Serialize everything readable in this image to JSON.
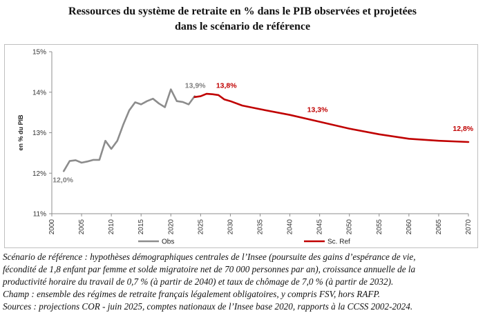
{
  "title_line1": "Ressources du système de retraite en % dans le PIB observées et projetées",
  "title_line2": "dans le scénario de référence",
  "notes": [
    "Scénario de référence : hypothèses démographiques centrales de l’Insee (poursuite des gains d’espérance de vie,",
    "fécondité de 1,8 enfant par femme et solde migratoire net de 70 000 personnes par an), croissance annuelle de la",
    "productivité horaire du travail de 0,7 % (à partir de 2040) et taux de chômage de 7,0 % (à partir de 2032).",
    "Champ : ensemble des régimes de retraite français légalement obligatoires, y compris FSV, hors RAFP.",
    "Sources : projections COR - juin 2025, comptes nationaux de l’Insee base 2020, rapports à la CCSS 2002-2024."
  ],
  "chart_data": {
    "type": "line",
    "ylabel": "en % du PIB",
    "xlabel": "",
    "xlim": [
      2000,
      2070
    ],
    "ylim": [
      11,
      15
    ],
    "x_ticks": [
      "2000",
      "2005",
      "2010",
      "2015",
      "2020",
      "2025",
      "2030",
      "2035",
      "2040",
      "2045",
      "2050",
      "2055",
      "2060",
      "2065",
      "2070"
    ],
    "y_ticks": [
      "11%",
      "12%",
      "13%",
      "14%",
      "15%"
    ],
    "y_tick_values": [
      11,
      12,
      13,
      14,
      15
    ],
    "grid": false,
    "legend_position": "bottom",
    "series": [
      {
        "name": "Obs",
        "color": "#8c8c8c",
        "x": [
          2002,
          2003,
          2004,
          2005,
          2006,
          2007,
          2008,
          2009,
          2010,
          2011,
          2012,
          2013,
          2014,
          2015,
          2016,
          2017,
          2018,
          2019,
          2020,
          2021,
          2022,
          2023,
          2024
        ],
        "y": [
          12.05,
          12.3,
          12.32,
          12.26,
          12.29,
          12.33,
          12.33,
          12.8,
          12.6,
          12.8,
          13.2,
          13.55,
          13.75,
          13.7,
          13.78,
          13.84,
          13.72,
          13.63,
          14.07,
          13.78,
          13.76,
          13.7,
          13.9
        ]
      },
      {
        "name": "Sc. Ref",
        "color": "#c00000",
        "x": [
          2024,
          2025,
          2026,
          2027,
          2028,
          2029,
          2030,
          2032,
          2035,
          2040,
          2045,
          2050,
          2055,
          2060,
          2065,
          2070
        ],
        "y": [
          13.88,
          13.9,
          13.96,
          13.95,
          13.93,
          13.82,
          13.78,
          13.67,
          13.58,
          13.44,
          13.27,
          13.1,
          12.96,
          12.85,
          12.8,
          12.77
        ]
      }
    ],
    "data_labels": [
      {
        "text": "12,0%",
        "x": 2002,
        "y": 12.05,
        "color": "#7f7f7f",
        "dx": -16,
        "dy": 16
      },
      {
        "text": "13,9%",
        "x": 2024,
        "y": 13.9,
        "color": "#7f7f7f",
        "dx": -14,
        "dy": -12
      },
      {
        "text": "13,8%",
        "x": 2029,
        "y": 13.83,
        "color": "#c00000",
        "dx": -12,
        "dy": -16
      },
      {
        "text": "13,3%",
        "x": 2045,
        "y": 13.27,
        "color": "#c00000",
        "dx": -18,
        "dy": -14
      },
      {
        "text": "12,8%",
        "x": 2069,
        "y": 12.77,
        "color": "#c00000",
        "dx": -14,
        "dy": -16
      }
    ]
  }
}
